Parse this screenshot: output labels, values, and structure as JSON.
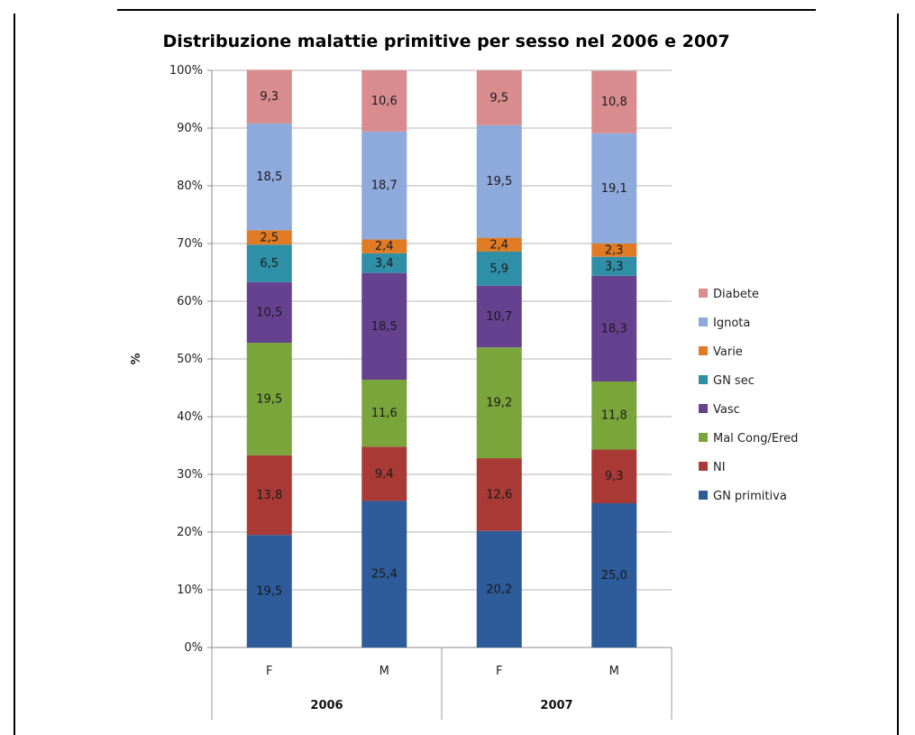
{
  "chart_data": {
    "type": "bar",
    "stacked": true,
    "percent": true,
    "title": "Distribuzione malattie primitive per sesso nel 2006 e 2007",
    "ylabel": "%",
    "ylim": [
      0,
      100
    ],
    "yticks": [
      "0%",
      "10%",
      "20%",
      "30%",
      "40%",
      "50%",
      "60%",
      "70%",
      "80%",
      "90%",
      "100%"
    ],
    "categories": [
      "F",
      "M",
      "F",
      "M"
    ],
    "groups": [
      "2006",
      "2007"
    ],
    "grid": true,
    "legend_position": "right",
    "series": [
      {
        "name": "GN primitiva",
        "color": "#2E5B9A",
        "values": [
          19.5,
          25.4,
          20.2,
          25.0
        ],
        "labels": [
          "19,5",
          "25,4",
          "20,2",
          "25,0"
        ]
      },
      {
        "name": "NI",
        "color": "#A93A36",
        "values": [
          13.8,
          9.4,
          12.6,
          9.3
        ],
        "labels": [
          "13,8",
          "9,4",
          "12,6",
          "9,3"
        ]
      },
      {
        "name": "Mal Cong/Ered",
        "color": "#7AA53A",
        "values": [
          19.5,
          11.6,
          19.2,
          11.8
        ],
        "labels": [
          "19,5",
          "11,6",
          "19,2",
          "11,8"
        ]
      },
      {
        "name": "Vasc",
        "color": "#654190",
        "values": [
          10.5,
          18.5,
          10.7,
          18.3
        ],
        "labels": [
          "10,5",
          "18,5",
          "10,7",
          "18,3"
        ]
      },
      {
        "name": "GN sec",
        "color": "#2F8FA6",
        "values": [
          6.5,
          3.4,
          5.9,
          3.3
        ],
        "labels": [
          "6,5",
          "3,4",
          "5,9",
          "3,3"
        ]
      },
      {
        "name": "Varie",
        "color": "#E07B25",
        "values": [
          2.5,
          2.4,
          2.4,
          2.3
        ],
        "labels": [
          "2,5",
          "2,4",
          "2,4",
          "2,3"
        ]
      },
      {
        "name": "Ignota",
        "color": "#8EA9DB",
        "values": [
          18.5,
          18.7,
          19.5,
          19.1
        ],
        "labels": [
          "18,5",
          "18,7",
          "19,5",
          "19,1"
        ]
      },
      {
        "name": "Diabete",
        "color": "#D98C8E",
        "values": [
          9.3,
          10.6,
          9.5,
          10.8
        ],
        "labels": [
          "9,3",
          "10,6",
          "9,5",
          "10,8"
        ]
      }
    ],
    "legend_order": [
      "Diabete",
      "Ignota",
      "Varie",
      "GN sec",
      "Vasc",
      "Mal Cong/Ered",
      "NI",
      "GN primitiva"
    ]
  }
}
